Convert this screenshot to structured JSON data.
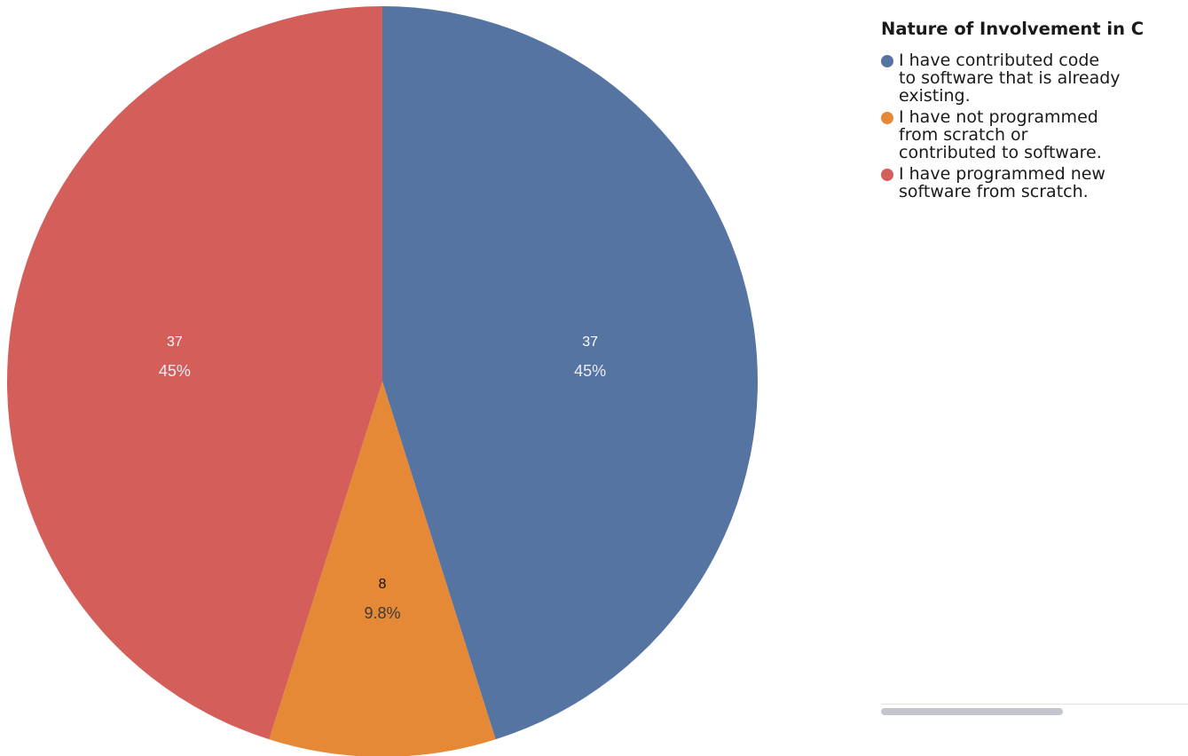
{
  "chart_data": {
    "type": "pie",
    "title": "Nature of Involvement in C",
    "slices": [
      {
        "label": "I have contributed code to software that is already existing.",
        "value": 37,
        "percent_label": "45%",
        "color": "#5574a1"
      },
      {
        "label": "I have not programmed from scratch or contributed to software.",
        "value": 8,
        "percent_label": "9.8%",
        "color": "#e68937"
      },
      {
        "label": "I have programmed new software from scratch.",
        "value": 37,
        "percent_label": "45%",
        "color": "#d45f5a"
      }
    ],
    "legend_position": "right"
  },
  "scrollbar": {
    "position": 0.0
  }
}
